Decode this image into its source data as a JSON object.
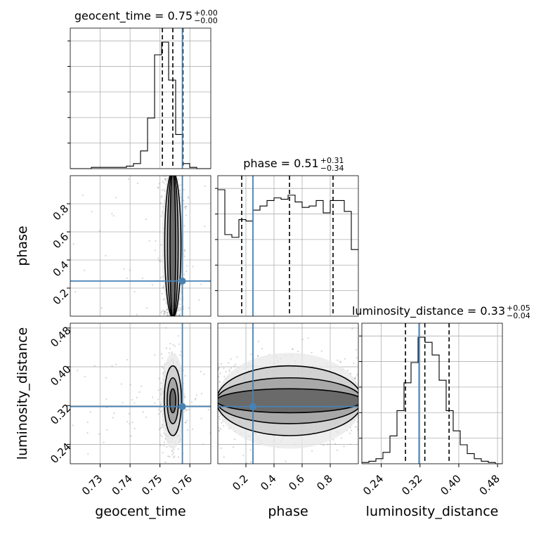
{
  "chart_data": {
    "type": "corner",
    "parameters": [
      {
        "name": "geocent_time",
        "range": [
          0.72,
          0.767
        ],
        "ticks": [
          0.73,
          0.74,
          0.75,
          0.76
        ],
        "tick_labels": [
          "0.73",
          "0.74",
          "0.75",
          "0.76"
        ]
      },
      {
        "name": "phase",
        "range": [
          0.0,
          1.0
        ],
        "ticks": [
          0.2,
          0.4,
          0.6,
          0.8
        ],
        "tick_labels": [
          "0.2",
          "0.4",
          "0.6",
          "0.8"
        ]
      },
      {
        "name": "luminosity_distance",
        "range": [
          0.2,
          0.49
        ],
        "ticks": [
          0.24,
          0.32,
          0.4,
          0.48
        ],
        "tick_labels": [
          "0.24",
          "0.32",
          "0.40",
          "0.48"
        ]
      }
    ],
    "titles": [
      {
        "text": "geocent_time = 0.75",
        "sup": "+0.00",
        "sub": "−0.00"
      },
      {
        "text": "phase = 0.51",
        "sup": "+0.31",
        "sub": "−0.34"
      },
      {
        "text": "luminosity_distance = 0.33",
        "sup": "+0.05",
        "sub": "−0.04"
      }
    ],
    "truths": [
      0.7575,
      0.25,
      0.318
    ],
    "quantiles": [
      [
        0.7508,
        0.7543,
        0.7577
      ],
      [
        0.17,
        0.51,
        0.82
      ],
      [
        0.29,
        0.33,
        0.38
      ]
    ],
    "histograms": [
      {
        "edges_start": 0.72,
        "edges_step": 0.00235,
        "counts": [
          0,
          0,
          0,
          1,
          1,
          1,
          1,
          1,
          2,
          4,
          14,
          40,
          90,
          100,
          70,
          27,
          4,
          1,
          0,
          0
        ]
      },
      {
        "edges_start": 0.0,
        "edges_step": 0.05,
        "counts": [
          93,
          60,
          58,
          71,
          70,
          78,
          81,
          85,
          87,
          86,
          89,
          84,
          80,
          81,
          85,
          76,
          85,
          85,
          77,
          49
        ]
      },
      {
        "edges_start": 0.2,
        "edges_step": 0.0145,
        "counts": [
          1,
          2,
          4,
          9,
          22,
          42,
          64,
          80,
          100,
          96,
          86,
          66,
          42,
          26,
          15,
          8,
          4,
          2,
          1,
          0
        ]
      }
    ],
    "contours_2d": [
      {
        "pair": [
          "geocent_time",
          "phase"
        ],
        "center": [
          0.7543,
          0.51
        ],
        "sd": [
          0.0017,
          0.29
        ],
        "shape": "vertical-band"
      },
      {
        "pair": [
          "geocent_time",
          "luminosity_distance"
        ],
        "center": [
          0.7543,
          0.33
        ],
        "sd": [
          0.0018,
          0.045
        ],
        "shape": "ellipse"
      },
      {
        "pair": [
          "phase",
          "luminosity_distance"
        ],
        "center": [
          0.51,
          0.33
        ],
        "sd": [
          0.29,
          0.045
        ],
        "shape": "horizontal-band"
      }
    ],
    "grid": true,
    "legend": "none"
  }
}
